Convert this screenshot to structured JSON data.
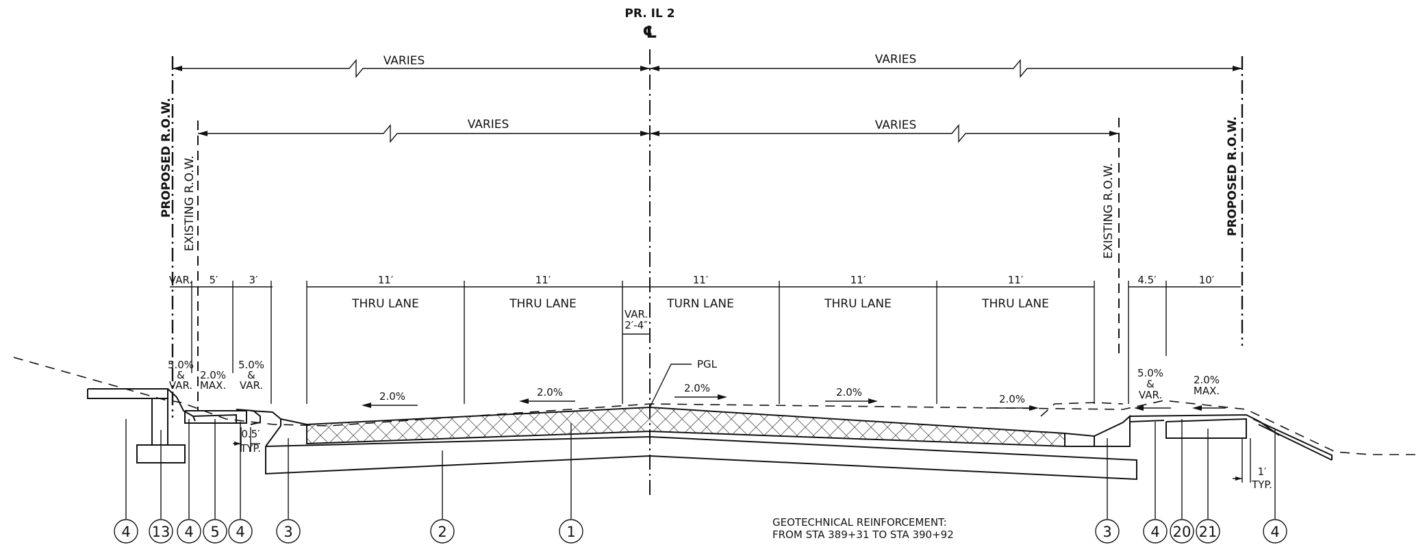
{
  "header": {
    "route": "PR. IL 2",
    "centerline_symbol": "℄"
  },
  "row_labels": {
    "left_proposed": "PROPOSED R.O.W.",
    "left_existing": "EXISTING R.O.W.",
    "right_existing": "EXISTING R.O.W.",
    "right_proposed": "PROPOSED R.O.W."
  },
  "overall_dims": {
    "left_top": "VARIES",
    "right_top": "VARIES",
    "left_mid": "VARIES",
    "right_mid": "VARIES"
  },
  "segment_dims": {
    "var": "VAR.",
    "five": "5′",
    "three": "3′",
    "lane1": "11′",
    "lane2": "11′",
    "turn": "11′",
    "lane4": "11′",
    "lane5": "11′",
    "median_var": "VAR.",
    "median_range": "2′-4″",
    "four_half": "4.5′",
    "ten": "10′"
  },
  "lanes": {
    "l1": "THRU LANE",
    "l2": "THRU LANE",
    "turn": "TURN LANE",
    "l4": "THRU LANE",
    "l5": "THRU LANE"
  },
  "slopes": {
    "left_shoulder_a": [
      "5.0%",
      "&",
      "VAR."
    ],
    "left_walk": [
      "2.0%",
      "MAX."
    ],
    "left_shoulder_b": [
      "5.0%",
      "&",
      "VAR."
    ],
    "lane1": "2.0%",
    "lane2": "2.0%",
    "turn": "2.0%",
    "lane4": "2.0%",
    "lane5": "2.0%",
    "right_shoulder": [
      "5.0%",
      "&",
      "VAR."
    ],
    "right_walk": [
      "2.0%",
      "MAX."
    ]
  },
  "notes": {
    "pgl": "PGL",
    "left_offset": [
      "0.5′",
      "TYP."
    ],
    "right_offset": [
      "1′",
      "TYP."
    ],
    "geotech": [
      "GEOTECHNICAL REINFORCEMENT:",
      "FROM STA 389+31 TO STA 390+92"
    ]
  },
  "callouts": [
    "4",
    "13",
    "4",
    "5",
    "4",
    "3",
    "2",
    "1",
    "3",
    "4",
    "20",
    "21",
    "4"
  ]
}
